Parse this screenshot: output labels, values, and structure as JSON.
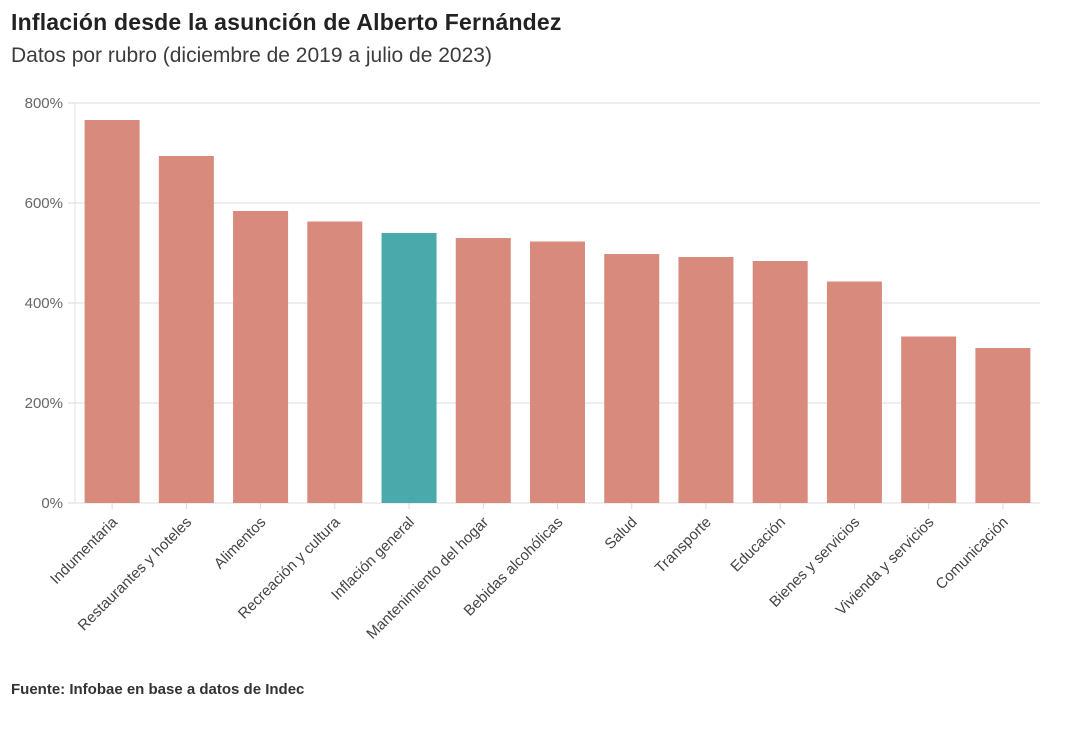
{
  "header": {
    "title": "Inflación desde la asunción de Alberto Fernández",
    "subtitle": "Datos por rubro (diciembre de 2019 a julio de 2023)"
  },
  "footer": {
    "source": "Fuente: Infobae en base a datos de Indec"
  },
  "colors": {
    "bar": "#d88b7d",
    "highlight_bar": "#4aa9ab",
    "gridline": "#e8e8e8",
    "axis_line": "#e0e0e0",
    "tick": "#d9d9d9",
    "y_tick_text": "#666666",
    "x_label_text": "#444444",
    "background": "#ffffff"
  },
  "chart_data": {
    "type": "bar",
    "title": "Inflación desde la asunción de Alberto Fernández",
    "subtitle": "Datos por rubro (diciembre de 2019 a julio de 2023)",
    "xlabel": "",
    "ylabel": "",
    "categories": [
      "Indumentaria",
      "Restaurantes y hoteles",
      "Alimentos",
      "Recreación y cultura",
      "Inflación general",
      "Mantenimiento del hogar",
      "Bebidas alcohólicas",
      "Salud",
      "Transporte",
      "Educación",
      "Bienes y servicios",
      "Vivienda y servicios",
      "Comunicación"
    ],
    "values": [
      766,
      694,
      584,
      563,
      540,
      530,
      523,
      498,
      492,
      484,
      443,
      333,
      310
    ],
    "unit": "%",
    "highlight_category": "Inflación general",
    "highlight_index": 4,
    "ylim": [
      0,
      800
    ],
    "yticks": [
      0,
      200,
      400,
      600,
      800
    ],
    "ytick_labels": [
      "0%",
      "200%",
      "400%",
      "600%",
      "800%"
    ],
    "grid": "horizontal",
    "legend_position": "none",
    "x_label_rotation": -45
  }
}
